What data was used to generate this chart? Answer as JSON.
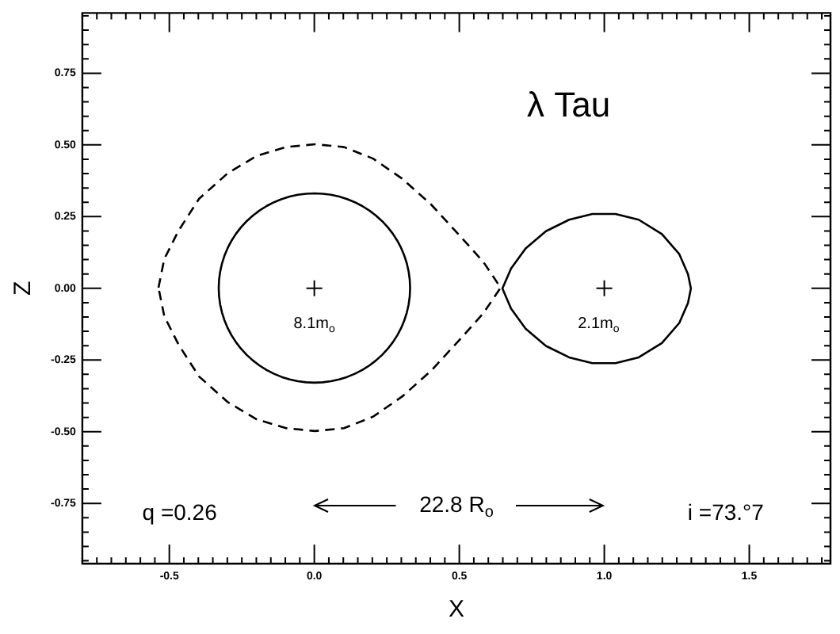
{
  "chart_data": {
    "type": "scatter",
    "xlabel": "X",
    "ylabel": "Z",
    "grid": false,
    "legend": false,
    "xlim": [
      -0.8,
      1.78
    ],
    "ylim": [
      -0.96,
      0.96
    ],
    "xticks": [
      {
        "value": -0.8,
        "label": null
      },
      {
        "value": -0.75,
        "label": null
      },
      {
        "value": -0.7,
        "label": null
      },
      {
        "value": -0.65,
        "label": null
      },
      {
        "value": -0.6,
        "label": null
      },
      {
        "value": -0.55,
        "label": null
      },
      -0.5,
      {
        "value": -0.45,
        "label": null
      },
      {
        "value": -0.4,
        "label": null
      },
      {
        "value": -0.35,
        "label": null
      },
      {
        "value": -0.3,
        "label": null
      },
      {
        "value": -0.25,
        "label": null
      },
      {
        "value": -0.2,
        "label": null
      },
      {
        "value": -0.15,
        "label": null
      },
      {
        "value": -0.1,
        "label": null
      },
      {
        "value": -0.05,
        "label": null
      },
      {
        "value": 0,
        "label": "0.0"
      },
      {
        "value": 0.05,
        "label": null
      },
      {
        "value": 0.1,
        "label": null
      },
      {
        "value": 0.15,
        "label": null
      },
      {
        "value": 0.2,
        "label": null
      },
      {
        "value": 0.25,
        "label": null
      },
      {
        "value": 0.3,
        "label": null
      },
      {
        "value": 0.35,
        "label": null
      },
      {
        "value": 0.4,
        "label": null
      },
      {
        "value": 0.45,
        "label": null
      },
      0.5,
      {
        "value": 0.55,
        "label": null
      },
      {
        "value": 0.6,
        "label": null
      },
      {
        "value": 0.65,
        "label": null
      },
      {
        "value": 0.7,
        "label": null
      },
      {
        "value": 0.75,
        "label": null
      },
      {
        "value": 0.8,
        "label": null
      },
      {
        "value": 0.85,
        "label": null
      },
      {
        "value": 0.9,
        "label": null
      },
      {
        "value": 0.95,
        "label": null
      },
      {
        "value": 1,
        "label": "1.0"
      },
      {
        "value": 1.05,
        "label": null
      },
      {
        "value": 1.1,
        "label": null
      },
      {
        "value": 1.15,
        "label": null
      },
      {
        "value": 1.2,
        "label": null
      },
      {
        "value": 1.25,
        "label": null
      },
      {
        "value": 1.3,
        "label": null
      },
      {
        "value": 1.35,
        "label": null
      },
      {
        "value": 1.4,
        "label": null
      },
      {
        "value": 1.45,
        "label": null
      },
      1.5,
      {
        "value": 1.55,
        "label": null
      },
      {
        "value": 1.6,
        "label": null
      },
      {
        "value": 1.65,
        "label": null
      },
      {
        "value": 1.7,
        "label": null
      },
      {
        "value": 1.75,
        "label": null
      }
    ],
    "yticks": [
      {
        "value": -0.95,
        "label": null
      },
      {
        "value": -0.9,
        "label": null
      },
      {
        "value": -0.85,
        "label": null
      },
      {
        "value": -0.8,
        "label": null
      },
      -0.75,
      {
        "value": -0.7,
        "label": null
      },
      {
        "value": -0.65,
        "label": null
      },
      {
        "value": -0.6,
        "label": null
      },
      {
        "value": -0.55,
        "label": null
      },
      {
        "value": -0.5,
        "label": "-0.50"
      },
      {
        "value": -0.45,
        "label": null
      },
      {
        "value": -0.4,
        "label": null
      },
      {
        "value": -0.35,
        "label": null
      },
      {
        "value": -0.3,
        "label": null
      },
      -0.25,
      {
        "value": -0.2,
        "label": null
      },
      {
        "value": -0.15,
        "label": null
      },
      {
        "value": -0.1,
        "label": null
      },
      {
        "value": -0.05,
        "label": null
      },
      {
        "value": 0,
        "label": "0.00"
      },
      {
        "value": 0.05,
        "label": null
      },
      {
        "value": 0.1,
        "label": null
      },
      {
        "value": 0.15,
        "label": null
      },
      {
        "value": 0.2,
        "label": null
      },
      0.25,
      {
        "value": 0.3,
        "label": null
      },
      {
        "value": 0.35,
        "label": null
      },
      {
        "value": 0.4,
        "label": null
      },
      {
        "value": 0.45,
        "label": null
      },
      {
        "value": 0.5,
        "label": "0.50"
      },
      {
        "value": 0.55,
        "label": null
      },
      {
        "value": 0.6,
        "label": null
      },
      {
        "value": 0.65,
        "label": null
      },
      {
        "value": 0.7,
        "label": null
      },
      0.75,
      {
        "value": 0.8,
        "label": null
      },
      {
        "value": 0.85,
        "label": null
      },
      {
        "value": 0.9,
        "label": null
      },
      {
        "value": 0.95,
        "label": null
      }
    ],
    "series": [
      {
        "type": "scatter",
        "marker": "cross",
        "color": "#000000",
        "x": [
          0,
          1
        ],
        "values": [
          0,
          0
        ]
      }
    ],
    "annotations": [
      "λ Tau",
      "q =0.26",
      "i =73.°7",
      "8.1m$_{o}$",
      "2.1m$_{o}$",
      "22.8 R$_{o}$"
    ]
  }
}
